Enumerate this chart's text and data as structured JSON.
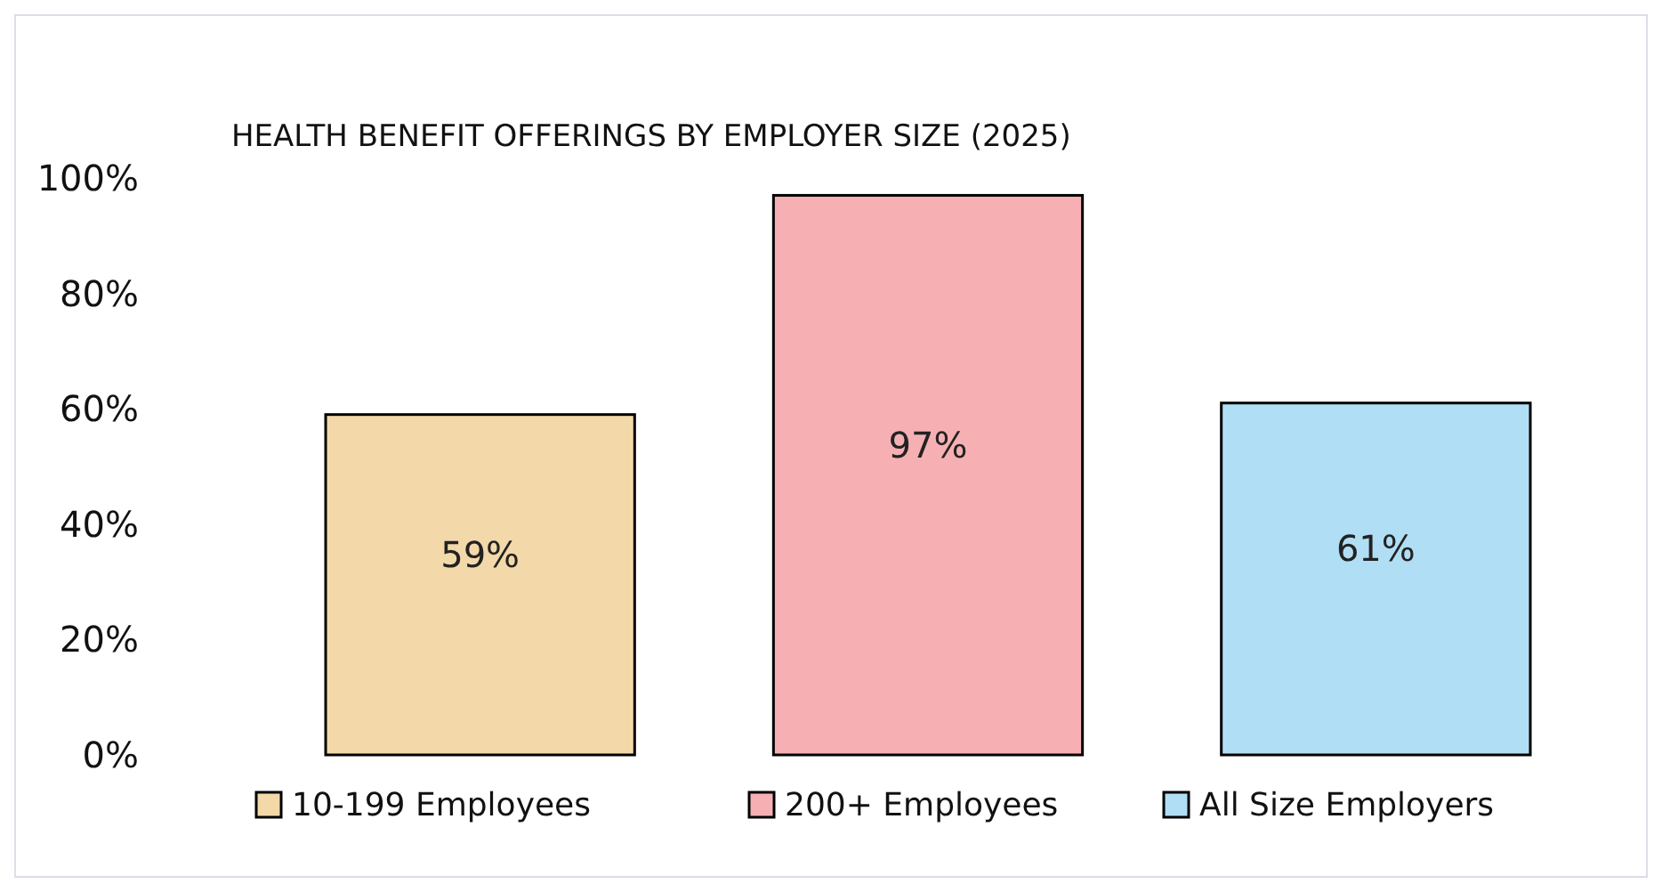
{
  "chart_data": {
    "type": "bar",
    "title": "HEALTH BENEFIT OFFERINGS BY EMPLOYER SIZE (2025)",
    "categories": [
      "10-199 Employees",
      "200+ Employees",
      "All Size Employers"
    ],
    "values": [
      59,
      97,
      61
    ],
    "colors": [
      "#f3d9a9",
      "#f6b0b3",
      "#b0def5"
    ],
    "value_labels": [
      "59%",
      "97%",
      "61%"
    ],
    "ylim": [
      0,
      100
    ],
    "yticks": [
      {
        "value": 0,
        "label": "0%"
      },
      {
        "value": 20,
        "label": "20%"
      },
      {
        "value": 40,
        "label": "40%"
      },
      {
        "value": 60,
        "label": "60%"
      },
      {
        "value": 80,
        "label": "80%"
      },
      {
        "value": 100,
        "label": "100%"
      }
    ],
    "grid": false
  }
}
